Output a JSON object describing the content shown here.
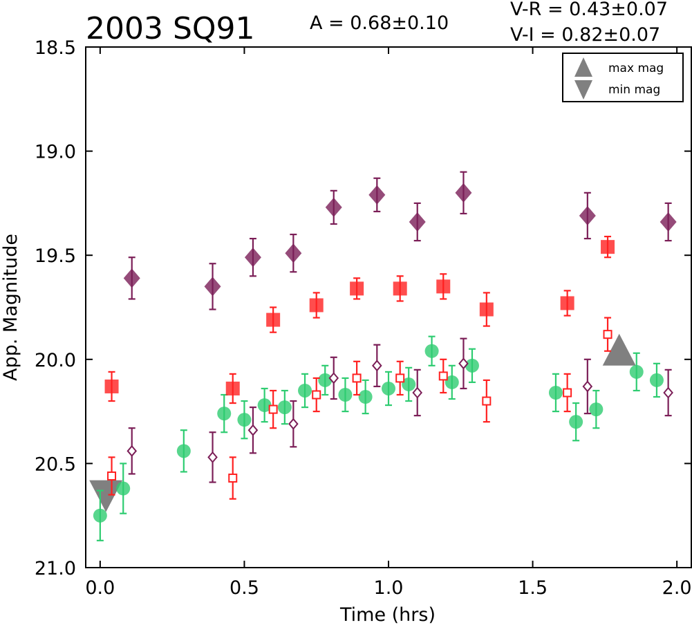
{
  "chart_data": {
    "type": "scatter",
    "title": "2003 SQ91",
    "annotations": {
      "amplitude": "A  = 0.68±0.10",
      "vr": "V-R = 0.43±0.07",
      "vi": "V-I  = 0.82±0.07"
    },
    "xlabel": "Time (hrs)",
    "ylabel": "App. Magnitude",
    "xlim": [
      -0.05,
      2.05
    ],
    "ylim": [
      21.0,
      18.5
    ],
    "y_inverted": true,
    "xticks": [
      "0.0",
      "0.5",
      "1.0",
      "1.5",
      "2.0"
    ],
    "yticks": [
      "18.5",
      "19.0",
      "19.5",
      "20.0",
      "20.5",
      "21.0"
    ],
    "grid": false,
    "legend": {
      "placement": "top-right",
      "entries": [
        "max mag",
        "min mag"
      ]
    },
    "colors": {
      "green": "#2ecc71",
      "red": "#ff2020",
      "purple": "#7b1e57",
      "gray": "#808080"
    },
    "series": [
      {
        "marker": "circle-filled",
        "color": "#2ecc71",
        "points": [
          [
            0.0,
            20.75,
            0.12
          ],
          [
            0.08,
            20.62,
            0.12
          ],
          [
            0.29,
            20.44,
            0.1
          ],
          [
            0.43,
            20.26,
            0.09
          ],
          [
            0.5,
            20.29,
            0.09
          ],
          [
            0.57,
            20.22,
            0.08
          ],
          [
            0.64,
            20.23,
            0.08
          ],
          [
            0.71,
            20.15,
            0.08
          ],
          [
            0.78,
            20.1,
            0.07
          ],
          [
            0.85,
            20.17,
            0.08
          ],
          [
            0.92,
            20.18,
            0.08
          ],
          [
            1.0,
            20.14,
            0.08
          ],
          [
            1.07,
            20.12,
            0.08
          ],
          [
            1.15,
            19.96,
            0.07
          ],
          [
            1.22,
            20.11,
            0.08
          ],
          [
            1.29,
            20.03,
            0.08
          ],
          [
            1.58,
            20.16,
            0.09
          ],
          [
            1.65,
            20.3,
            0.09
          ],
          [
            1.72,
            20.24,
            0.09
          ],
          [
            1.86,
            20.06,
            0.09
          ],
          [
            1.93,
            20.1,
            0.08
          ]
        ]
      },
      {
        "marker": "square-filled",
        "color": "#ff2020",
        "points": [
          [
            0.04,
            20.13,
            0.07
          ],
          [
            0.46,
            20.14,
            0.07
          ],
          [
            0.6,
            19.81,
            0.06
          ],
          [
            0.75,
            19.74,
            0.06
          ],
          [
            0.89,
            19.66,
            0.05
          ],
          [
            1.04,
            19.66,
            0.06
          ],
          [
            1.19,
            19.65,
            0.06
          ],
          [
            1.34,
            19.76,
            0.08
          ],
          [
            1.62,
            19.73,
            0.06
          ],
          [
            1.76,
            19.46,
            0.05
          ]
        ]
      },
      {
        "marker": "square-open",
        "color": "#ff2020",
        "points": [
          [
            0.04,
            20.56,
            0.09
          ],
          [
            0.46,
            20.57,
            0.1
          ],
          [
            0.6,
            20.24,
            0.09
          ],
          [
            0.75,
            20.17,
            0.08
          ],
          [
            0.89,
            20.09,
            0.08
          ],
          [
            1.04,
            20.09,
            0.08
          ],
          [
            1.19,
            20.08,
            0.08
          ],
          [
            1.34,
            20.2,
            0.1
          ],
          [
            1.62,
            20.16,
            0.09
          ],
          [
            1.76,
            19.88,
            0.08
          ]
        ]
      },
      {
        "marker": "diamond-filled",
        "color": "#7b1e57",
        "points": [
          [
            0.11,
            19.61,
            0.1
          ],
          [
            0.39,
            19.65,
            0.11
          ],
          [
            0.53,
            19.51,
            0.09
          ],
          [
            0.67,
            19.49,
            0.09
          ],
          [
            0.81,
            19.27,
            0.08
          ],
          [
            0.96,
            19.21,
            0.08
          ],
          [
            1.1,
            19.34,
            0.09
          ],
          [
            1.26,
            19.2,
            0.1
          ],
          [
            1.69,
            19.31,
            0.11
          ],
          [
            1.97,
            19.34,
            0.09
          ]
        ]
      },
      {
        "marker": "diamond-open",
        "color": "#7b1e57",
        "points": [
          [
            0.11,
            20.44,
            0.11
          ],
          [
            0.39,
            20.47,
            0.12
          ],
          [
            0.53,
            20.34,
            0.11
          ],
          [
            0.67,
            20.31,
            0.11
          ],
          [
            0.81,
            20.09,
            0.1
          ],
          [
            0.96,
            20.03,
            0.1
          ],
          [
            1.1,
            20.16,
            0.11
          ],
          [
            1.26,
            20.02,
            0.12
          ],
          [
            1.69,
            20.13,
            0.13
          ],
          [
            1.97,
            20.16,
            0.11
          ]
        ]
      }
    ],
    "extrema": [
      {
        "type": "max mag",
        "x": 1.8,
        "y": 19.97
      },
      {
        "type": "min mag",
        "x": 0.02,
        "y": 20.64
      }
    ]
  }
}
